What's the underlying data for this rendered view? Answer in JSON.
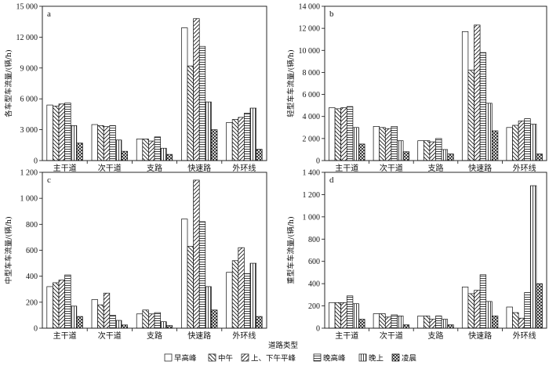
{
  "figure": {
    "xlabel": "道路类型",
    "legend": [
      "早高峰",
      "中午",
      "上、下午平峰",
      "晚高峰",
      "晚上",
      "凌晨"
    ],
    "patterns": [
      "blank",
      "diag-backslash",
      "diag-slash",
      "horizontal",
      "vertical",
      "crosshatch"
    ]
  },
  "chart_data": [
    {
      "type": "bar",
      "panel": "a",
      "ylabel": "各车型车流量/(辆/h)",
      "ylim": [
        0,
        15000
      ],
      "yticks": [
        0,
        3000,
        6000,
        9000,
        12000,
        15000
      ],
      "ytick_labels": [
        "0",
        "3 000",
        "6 000",
        "9 000",
        "12 000",
        "15 000"
      ],
      "categories": [
        "主干道",
        "次干道",
        "支路",
        "快速路",
        "外环线"
      ],
      "series": [
        {
          "name": "早高峰",
          "values": [
            5400,
            3500,
            2100,
            12900,
            3700
          ]
        },
        {
          "name": "中午",
          "values": [
            5300,
            3400,
            2100,
            9200,
            4000
          ]
        },
        {
          "name": "上、下午平峰",
          "values": [
            5500,
            3300,
            1900,
            13800,
            4200
          ]
        },
        {
          "name": "晚高峰",
          "values": [
            5600,
            3400,
            2300,
            11100,
            4600
          ]
        },
        {
          "name": "晚上",
          "values": [
            3400,
            2000,
            1200,
            5700,
            5100
          ]
        },
        {
          "name": "凌晨",
          "values": [
            1700,
            900,
            600,
            3000,
            1100
          ]
        }
      ]
    },
    {
      "type": "bar",
      "panel": "b",
      "ylabel": "轻型车车流量/(辆/h)",
      "ylim": [
        0,
        14000
      ],
      "yticks": [
        0,
        2000,
        4000,
        6000,
        8000,
        10000,
        12000,
        14000
      ],
      "ytick_labels": [
        "0",
        "2 000",
        "4 000",
        "6 000",
        "8 000",
        "10 000",
        "12 000",
        "14 000"
      ],
      "categories": [
        "主干道",
        "次干道",
        "支路",
        "快速路",
        "外环线"
      ],
      "series": [
        {
          "name": "早高峰",
          "values": [
            4800,
            3100,
            1800,
            11700,
            3000
          ]
        },
        {
          "name": "中午",
          "values": [
            4700,
            3000,
            1800,
            8200,
            3200
          ]
        },
        {
          "name": "上、下午平峰",
          "values": [
            4800,
            2900,
            1700,
            12300,
            3600
          ]
        },
        {
          "name": "晚高峰",
          "values": [
            4900,
            3100,
            2000,
            9800,
            3800
          ]
        },
        {
          "name": "晚上",
          "values": [
            3000,
            1800,
            1000,
            5200,
            3300
          ]
        },
        {
          "name": "凌晨",
          "values": [
            1500,
            800,
            600,
            2700,
            600
          ]
        }
      ]
    },
    {
      "type": "bar",
      "panel": "c",
      "ylabel": "中型车车流量/(辆/h)",
      "ylim": [
        0,
        1200
      ],
      "yticks": [
        0,
        200,
        400,
        600,
        800,
        1000,
        1200
      ],
      "ytick_labels": [
        "0",
        "200",
        "400",
        "600",
        "800",
        "1 000",
        "1 200"
      ],
      "categories": [
        "主干道",
        "次干道",
        "支路",
        "快速路",
        "外环线"
      ],
      "series": [
        {
          "name": "早高峰",
          "values": [
            320,
            220,
            110,
            840,
            430
          ]
        },
        {
          "name": "中午",
          "values": [
            350,
            180,
            140,
            630,
            520
          ]
        },
        {
          "name": "上、下午平峰",
          "values": [
            370,
            270,
            110,
            1140,
            620
          ]
        },
        {
          "name": "晚高峰",
          "values": [
            410,
            100,
            120,
            820,
            420
          ]
        },
        {
          "name": "晚上",
          "values": [
            170,
            60,
            50,
            320,
            500
          ]
        },
        {
          "name": "凌晨",
          "values": [
            90,
            25,
            20,
            140,
            90
          ]
        }
      ]
    },
    {
      "type": "bar",
      "panel": "d",
      "ylabel": "重型车车流量/(辆/h)",
      "ylim": [
        0,
        1400
      ],
      "yticks": [
        0,
        200,
        400,
        600,
        800,
        1000,
        1200,
        1400
      ],
      "ytick_labels": [
        "0",
        "200",
        "400",
        "600",
        "800",
        "1 000",
        "1 200",
        "1 400"
      ],
      "categories": [
        "主干道",
        "次干道",
        "支路",
        "快速路",
        "外环线"
      ],
      "series": [
        {
          "name": "早高峰",
          "values": [
            230,
            130,
            110,
            370,
            190
          ]
        },
        {
          "name": "中午",
          "values": [
            230,
            130,
            110,
            310,
            140
          ]
        },
        {
          "name": "上、下午平峰",
          "values": [
            230,
            100,
            80,
            340,
            90
          ]
        },
        {
          "name": "晚高峰",
          "values": [
            290,
            120,
            110,
            480,
            320
          ]
        },
        {
          "name": "晚上",
          "values": [
            220,
            110,
            80,
            240,
            1280
          ]
        },
        {
          "name": "凌晨",
          "values": [
            80,
            30,
            30,
            110,
            400
          ]
        }
      ]
    }
  ]
}
